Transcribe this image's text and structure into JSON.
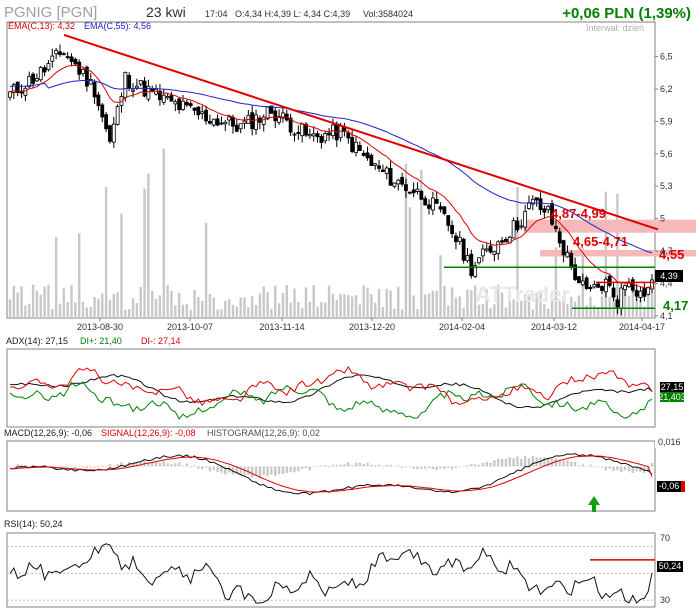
{
  "header": {
    "symbol": "PGNIG [PGN]",
    "date": "23 kwi",
    "time": "17:04",
    "ohlc": "O:4,34 H:4,39 L: 4,34 C:4,39",
    "volume": "Vol:3584024",
    "change": "+0,06 PLN (1,39%)",
    "interval": "Interwał: dzień",
    "ema_short_label": "EMA(C,13)",
    "ema_short_value": "4,32",
    "ema_long_label": "EMA(C,55)",
    "ema_long_value": "4,56"
  },
  "colors": {
    "up": "#008000",
    "down": "#e00000",
    "ema_short": "#e00000",
    "ema_long": "#2020d0",
    "trendline": "#e00000",
    "support": "#008000",
    "volume": "#c8c8c8",
    "zone": "#f6b8b8",
    "annotation": "#e00000",
    "frame": "#808080"
  },
  "chart_data": [
    {
      "type": "candlestick",
      "name": "price",
      "x_labels": [
        "2013-08-30",
        "2013-10-07",
        "2013-11-14",
        "2013-12-20",
        "2014-02-04",
        "2014-03-12",
        "2014-04-17"
      ],
      "y_ticks": [
        "6,5",
        "6,2",
        "5,9",
        "5,6",
        "5,3",
        "5",
        "4,7",
        "4,4",
        "4,1"
      ],
      "ylim": [
        4.08,
        6.82
      ],
      "last_price_label": "4,39",
      "ohlc_approx": [
        {
          "x": "2013-08-30",
          "close": 6.3
        },
        {
          "x": "2013-10-07",
          "close": 6.0
        },
        {
          "x": "2013-11-14",
          "close": 5.8
        },
        {
          "x": "2013-12-20",
          "close": 5.1
        },
        {
          "x": "2014-02-04",
          "close": 4.8
        },
        {
          "x": "2014-03-12",
          "close": 4.3
        },
        {
          "x": "2014-04-17",
          "close": 4.35
        }
      ],
      "annotations": {
        "zone_upper": "4,87-4,99",
        "zone_lower": "4,65-4,71",
        "resistance": "4,55",
        "support": "4,17",
        "watermark": "ATTrader"
      },
      "levels": {
        "zone_upper": [
          4.87,
          4.99
        ],
        "zone_lower": [
          4.65,
          4.71
        ],
        "resistance": 4.55,
        "support": 4.17,
        "trendline": [
          {
            "x": "2013-08-14",
            "y": 6.7
          },
          {
            "x": "2014-04-23",
            "y": 4.9
          }
        ]
      }
    },
    {
      "type": "line",
      "name": "ADX(14)",
      "label": "ADX(14): 27,15",
      "di_plus_label": "DI+: 21,40",
      "di_minus_label": "DI-: 27,14",
      "badge_top": "27,15",
      "badge_bottom": "21,403",
      "last_values": {
        "adx": 27.15,
        "di_plus": 21.4,
        "di_minus": 27.14
      }
    },
    {
      "type": "line",
      "name": "MACD(12,26,9)",
      "label": "MACD(12,26,9): -0,06",
      "signal_label": "SIGNAL(12,26,9): -0,08",
      "hist_label": "HISTOGRAM(12,26,9): 0,02",
      "badge_hist": "0,016",
      "badge_macd": "-0,06",
      "last_values": {
        "macd": -0.06,
        "signal": -0.08,
        "histogram": 0.02
      }
    },
    {
      "type": "line",
      "name": "RSI(14)",
      "label": "RSI(14): 50,24",
      "y_ticks": [
        "70",
        "30"
      ],
      "badge": "50,24",
      "ylim": [
        25,
        80
      ],
      "last_value": 50.24
    }
  ]
}
